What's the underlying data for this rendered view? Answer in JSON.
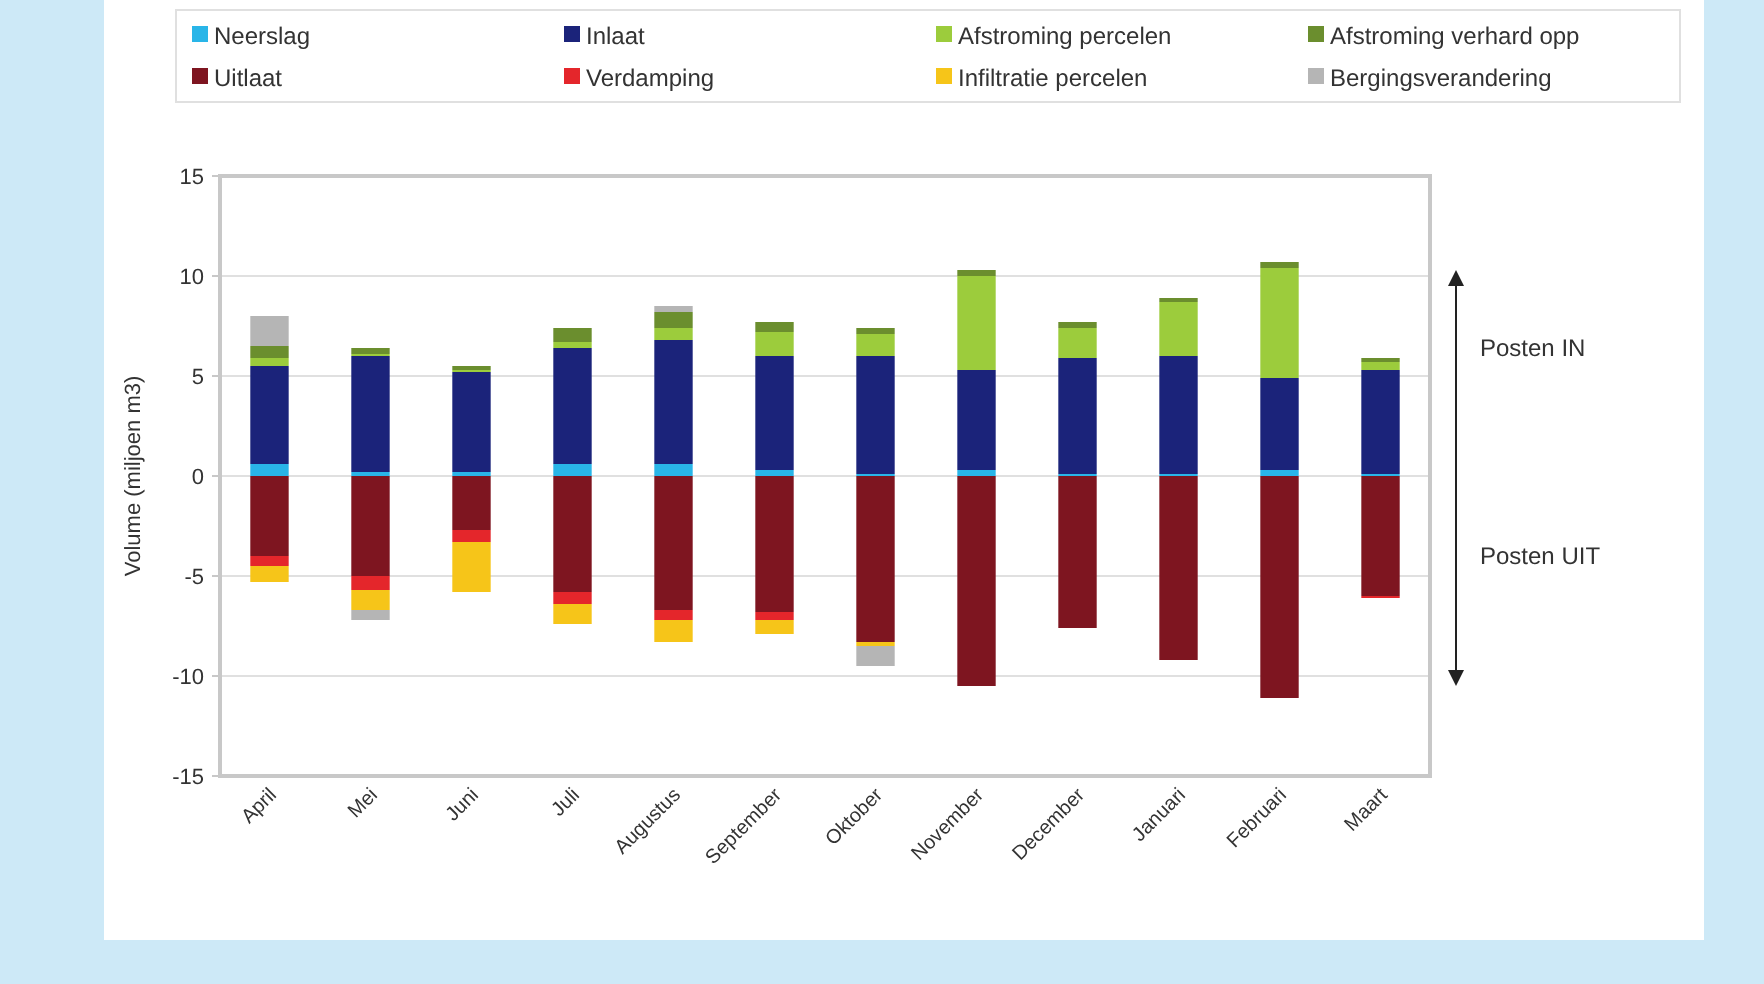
{
  "chart_data": {
    "type": "bar",
    "stacked": true,
    "ylabel": "Volume (miljoen m3)",
    "categories": [
      "April",
      "Mei",
      "Juni",
      "Juli",
      "Augustus",
      "September",
      "Oktober",
      "November",
      "December",
      "Januari",
      "Februari",
      "Maart"
    ],
    "series": [
      {
        "name": "Neerslag",
        "color": "#29b5e8",
        "values": [
          0.6,
          0.2,
          0.2,
          0.6,
          0.6,
          0.3,
          0.1,
          0.3,
          0.1,
          0.1,
          0.3,
          0.1
        ]
      },
      {
        "name": "Inlaat",
        "color": "#1b237a",
        "values": [
          4.9,
          5.8,
          5.0,
          5.8,
          6.2,
          5.7,
          5.9,
          5.0,
          5.8,
          5.9,
          4.6,
          5.2
        ]
      },
      {
        "name": "Afstroming percelen",
        "color": "#9ccc3c",
        "values": [
          0.4,
          0.1,
          0.1,
          0.3,
          0.6,
          1.2,
          1.1,
          4.7,
          1.5,
          2.7,
          5.5,
          0.4
        ]
      },
      {
        "name": "Afstroming verhard opp",
        "color": "#6b8e2e",
        "values": [
          0.6,
          0.3,
          0.2,
          0.7,
          0.8,
          0.5,
          0.3,
          0.3,
          0.3,
          0.2,
          0.3,
          0.2
        ]
      },
      {
        "name": "Uitlaat",
        "color": "#7e1520",
        "values": [
          -4.0,
          -5.0,
          -2.7,
          -5.8,
          -6.7,
          -6.8,
          -8.3,
          -10.5,
          -7.6,
          -9.2,
          -11.1,
          -6.0
        ]
      },
      {
        "name": "Verdamping",
        "color": "#e4262b",
        "values": [
          -0.5,
          -0.7,
          -0.6,
          -0.6,
          -0.5,
          -0.4,
          null,
          null,
          null,
          null,
          null,
          -0.1
        ]
      },
      {
        "name": "Infiltratie percelen",
        "color": "#f6c519",
        "values": [
          -0.8,
          -1.0,
          -2.5,
          -1.0,
          -1.1,
          -0.7,
          -0.2,
          null,
          null,
          null,
          null,
          null
        ]
      },
      {
        "name": "Bergingsverandering",
        "color": "#b5b5b5",
        "values": [
          1.5,
          -0.5,
          null,
          null,
          0.3,
          null,
          -1.0,
          null,
          null,
          null,
          null,
          null
        ]
      }
    ],
    "ylim": [
      -15,
      15
    ],
    "yticks": [
      -15,
      -10,
      -5,
      0,
      5,
      10,
      15
    ],
    "grid": "y",
    "legend": "top",
    "annotations": [
      "Posten IN",
      "Posten UIT"
    ]
  }
}
